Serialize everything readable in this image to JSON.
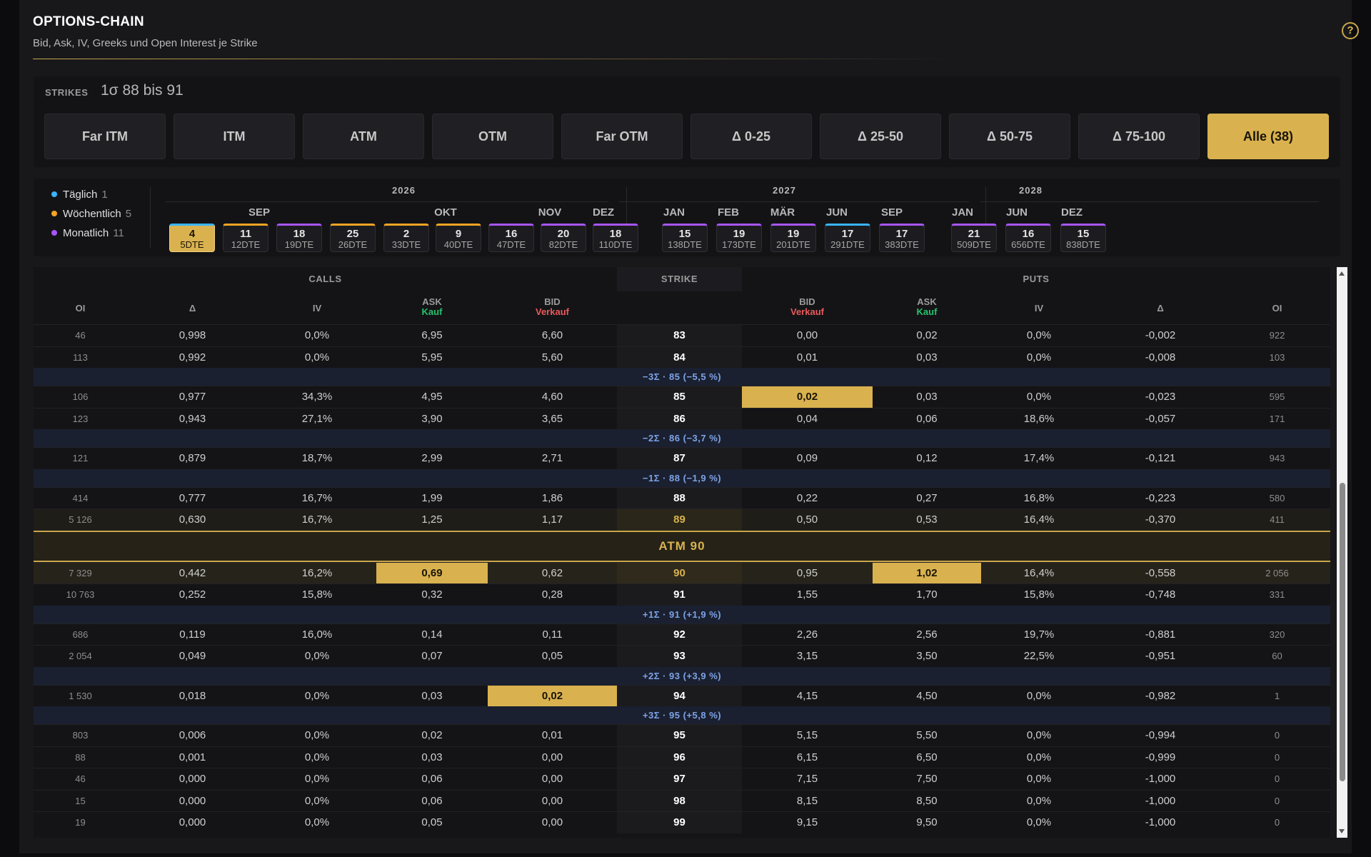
{
  "header": {
    "title": "OPTIONS-CHAIN",
    "subtitle": "Bid, Ask, IV, Greeks und Open Interest je Strike",
    "help": "?"
  },
  "strikes": {
    "label": "STRIKES",
    "range": "1σ 88 bis 91",
    "filters": [
      "Far ITM",
      "ITM",
      "ATM",
      "OTM",
      "Far OTM",
      "Δ 0-25",
      "Δ 25-50",
      "Δ 50-75",
      "Δ 75-100",
      "Alle  (38)"
    ],
    "active_index": 9
  },
  "legend": [
    {
      "label": "Täglich",
      "count": "1",
      "color": "#38b6ff"
    },
    {
      "label": "Wöchentlich",
      "count": "5",
      "color": "#f5a623"
    },
    {
      "label": "Monatlich",
      "count": "11",
      "color": "#a855f7"
    }
  ],
  "years": [
    "2026",
    "2027",
    "2028"
  ],
  "months": [
    "SEP",
    "OKT",
    "NOV",
    "DEZ",
    "JAN",
    "FEB",
    "MÄR",
    "JUN",
    "SEP",
    "JAN",
    "JUN",
    "DEZ"
  ],
  "expiries": [
    {
      "day": "4",
      "dte": "5DTE",
      "color": "#38b6ff",
      "selected": true
    },
    {
      "day": "11",
      "dte": "12DTE",
      "color": "#f5a623"
    },
    {
      "day": "18",
      "dte": "19DTE",
      "color": "#a855f7"
    },
    {
      "day": "25",
      "dte": "26DTE",
      "color": "#f5a623"
    },
    {
      "day": "2",
      "dte": "33DTE",
      "color": "#f5a623"
    },
    {
      "day": "9",
      "dte": "40DTE",
      "color": "#f5a623"
    },
    {
      "day": "16",
      "dte": "47DTE",
      "color": "#a855f7"
    },
    {
      "day": "20",
      "dte": "82DTE",
      "color": "#a855f7"
    },
    {
      "day": "18",
      "dte": "110DTE",
      "color": "#a855f7"
    },
    {
      "day": "15",
      "dte": "138DTE",
      "color": "#a855f7"
    },
    {
      "day": "19",
      "dte": "173DTE",
      "color": "#a855f7"
    },
    {
      "day": "19",
      "dte": "201DTE",
      "color": "#a855f7"
    },
    {
      "day": "17",
      "dte": "291DTE",
      "color": "#38b6ff"
    },
    {
      "day": "17",
      "dte": "383DTE",
      "color": "#a855f7"
    },
    {
      "day": "21",
      "dte": "509DTE",
      "color": "#a855f7"
    },
    {
      "day": "16",
      "dte": "656DTE",
      "color": "#a855f7"
    },
    {
      "day": "15",
      "dte": "838DTE",
      "color": "#a855f7"
    }
  ],
  "table": {
    "groups": {
      "calls": "CALLS",
      "strike": "STRIKE",
      "puts": "PUTS"
    },
    "columns": {
      "oi": "OI",
      "delta": "Δ",
      "iv": "IV",
      "ask": "ASK",
      "bid": "BID",
      "kauf": "Kauf",
      "verkauf": "Verkauf"
    },
    "rows": [
      {
        "kind": "row",
        "c": [
          "46",
          "0,998",
          "0,0%",
          "6,95",
          "6,60"
        ],
        "s": "83",
        "p": [
          "0,00",
          "0,02",
          "0,0%",
          "-0,002",
          "922"
        ]
      },
      {
        "kind": "row",
        "c": [
          "113",
          "0,992",
          "0,0%",
          "5,95",
          "5,60"
        ],
        "s": "84",
        "p": [
          "0,01",
          "0,03",
          "0,0%",
          "-0,008",
          "103"
        ]
      },
      {
        "kind": "sigma",
        "text": "−3Σ · 85 (−5,5 %)"
      },
      {
        "kind": "row",
        "c": [
          "106",
          "0,977",
          "34,3%",
          "4,95",
          "4,60"
        ],
        "s": "85",
        "p": [
          "0,02",
          "0,03",
          "0,0%",
          "-0,023",
          "595"
        ],
        "hl": [
          "pbid"
        ]
      },
      {
        "kind": "row",
        "c": [
          "123",
          "0,943",
          "27,1%",
          "3,90",
          "3,65"
        ],
        "s": "86",
        "p": [
          "0,04",
          "0,06",
          "18,6%",
          "-0,057",
          "171"
        ]
      },
      {
        "kind": "sigma",
        "text": "−2Σ · 86 (−3,7 %)"
      },
      {
        "kind": "row",
        "c": [
          "121",
          "0,879",
          "18,7%",
          "2,99",
          "2,71"
        ],
        "s": "87",
        "p": [
          "0,09",
          "0,12",
          "17,4%",
          "-0,121",
          "943"
        ]
      },
      {
        "kind": "sigma",
        "text": "−1Σ · 88 (−1,9 %)"
      },
      {
        "kind": "row",
        "c": [
          "414",
          "0,777",
          "16,7%",
          "1,99",
          "1,86"
        ],
        "s": "88",
        "p": [
          "0,22",
          "0,27",
          "16,8%",
          "-0,223",
          "580"
        ]
      },
      {
        "kind": "row",
        "c": [
          "5 126",
          "0,630",
          "16,7%",
          "1,25",
          "1,17"
        ],
        "s": "89",
        "p": [
          "0,50",
          "0,53",
          "16,4%",
          "-0,370",
          "411"
        ],
        "near": true
      },
      {
        "kind": "atm",
        "text": "ATM 90"
      },
      {
        "kind": "row",
        "c": [
          "7 329",
          "0,442",
          "16,2%",
          "0,69",
          "0,62"
        ],
        "s": "90",
        "p": [
          "0,95",
          "1,02",
          "16,4%",
          "-0,558",
          "2 056"
        ],
        "atm": true,
        "hl": [
          "cask",
          "pask"
        ]
      },
      {
        "kind": "row",
        "c": [
          "10 763",
          "0,252",
          "15,8%",
          "0,32",
          "0,28"
        ],
        "s": "91",
        "p": [
          "1,55",
          "1,70",
          "15,8%",
          "-0,748",
          "331"
        ]
      },
      {
        "kind": "sigma",
        "text": "+1Σ · 91 (+1,9 %)"
      },
      {
        "kind": "row",
        "c": [
          "686",
          "0,119",
          "16,0%",
          "0,14",
          "0,11"
        ],
        "s": "92",
        "p": [
          "2,26",
          "2,56",
          "19,7%",
          "-0,881",
          "320"
        ]
      },
      {
        "kind": "row",
        "c": [
          "2 054",
          "0,049",
          "0,0%",
          "0,07",
          "0,05"
        ],
        "s": "93",
        "p": [
          "3,15",
          "3,50",
          "22,5%",
          "-0,951",
          "60"
        ]
      },
      {
        "kind": "sigma",
        "text": "+2Σ · 93 (+3,9 %)"
      },
      {
        "kind": "row",
        "c": [
          "1 530",
          "0,018",
          "0,0%",
          "0,03",
          "0,02"
        ],
        "s": "94",
        "p": [
          "4,15",
          "4,50",
          "0,0%",
          "-0,982",
          "1"
        ],
        "hl": [
          "cbid"
        ]
      },
      {
        "kind": "sigma",
        "text": "+3Σ · 95 (+5,8 %)"
      },
      {
        "kind": "row",
        "c": [
          "803",
          "0,006",
          "0,0%",
          "0,02",
          "0,01"
        ],
        "s": "95",
        "p": [
          "5,15",
          "5,50",
          "0,0%",
          "-0,994",
          "0"
        ]
      },
      {
        "kind": "row",
        "c": [
          "88",
          "0,001",
          "0,0%",
          "0,03",
          "0,00"
        ],
        "s": "96",
        "p": [
          "6,15",
          "6,50",
          "0,0%",
          "-0,999",
          "0"
        ]
      },
      {
        "kind": "row",
        "c": [
          "46",
          "0,000",
          "0,0%",
          "0,06",
          "0,00"
        ],
        "s": "97",
        "p": [
          "7,15",
          "7,50",
          "0,0%",
          "-1,000",
          "0"
        ]
      },
      {
        "kind": "row",
        "c": [
          "15",
          "0,000",
          "0,0%",
          "0,06",
          "0,00"
        ],
        "s": "98",
        "p": [
          "8,15",
          "8,50",
          "0,0%",
          "-1,000",
          "0"
        ]
      },
      {
        "kind": "row",
        "c": [
          "19",
          "0,000",
          "0,0%",
          "0,05",
          "0,00"
        ],
        "s": "99",
        "p": [
          "9,15",
          "9,50",
          "0,0%",
          "-1,000",
          "0"
        ]
      }
    ]
  }
}
